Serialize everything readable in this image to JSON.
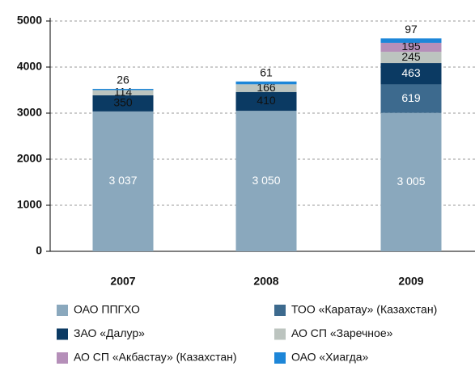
{
  "chart_data": {
    "type": "bar",
    "stacked": true,
    "categories": [
      "2007",
      "2008",
      "2009"
    ],
    "series": [
      {
        "name": "ОАО ППГХО",
        "color": "#8aa8bd",
        "values": [
          3037,
          3050,
          3005
        ],
        "value_labels": [
          "3 037",
          "3 050",
          "3 005"
        ]
      },
      {
        "name": "ТОО «Каратау» (Казахстан)",
        "color": "#3d6a8e",
        "values": [
          null,
          null,
          619
        ]
      },
      {
        "name": "ЗАО «Далур»",
        "color": "#0b3a63",
        "values": [
          350,
          410,
          463
        ]
      },
      {
        "name": "АО СП «Заречное»",
        "color": "#bcc4bf",
        "values": [
          114,
          166,
          245
        ]
      },
      {
        "name": "АО СП «Акбастау» (Казахстан)",
        "color": "#b58fb9",
        "values": [
          null,
          null,
          195
        ]
      },
      {
        "name": "ОАО «Хиагда»",
        "color": "#1d86d8",
        "values": [
          26,
          61,
          97
        ]
      }
    ],
    "ylim": [
      0,
      5000
    ],
    "yticks": [
      0,
      1000,
      2000,
      3000,
      4000,
      5000
    ],
    "grid": true
  }
}
